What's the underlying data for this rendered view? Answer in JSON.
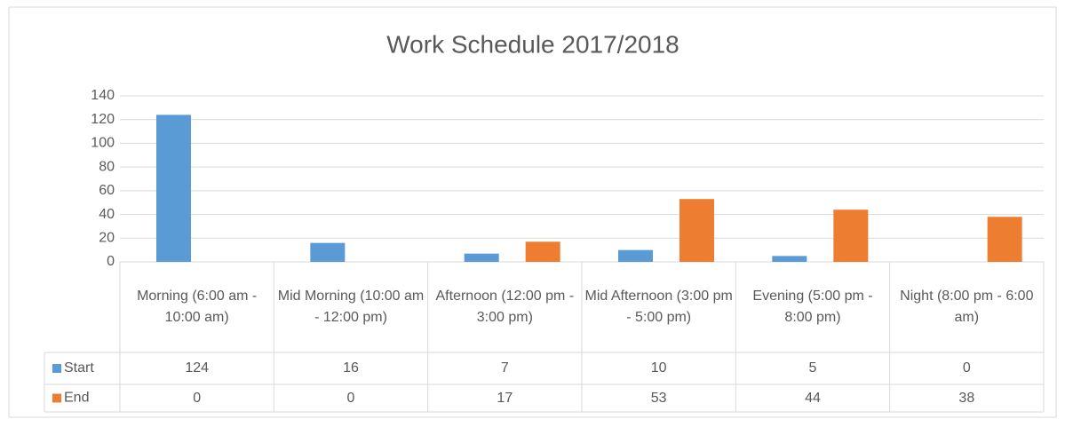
{
  "chart_data": {
    "type": "bar",
    "title": "Work Schedule 2017/2018",
    "categories": [
      "Morning (6:00 am - 10:00 am)",
      "Mid Morning (10:00 am - 12:00 pm)",
      "Afternoon (12:00 pm - 3:00 pm)",
      "Mid Afternoon (3:00 pm - 5:00 pm)",
      "Evening (5:00 pm - 8:00 pm)",
      "Night (8:00 pm - 6:00 am)"
    ],
    "series": [
      {
        "name": "Start",
        "color": "#5b9bd5",
        "values": [
          124,
          16,
          7,
          10,
          5,
          0
        ]
      },
      {
        "name": "End",
        "color": "#ed7d31",
        "values": [
          0,
          0,
          17,
          53,
          44,
          38
        ]
      }
    ],
    "ylim": [
      0,
      140
    ],
    "yticks": [
      0,
      20,
      40,
      60,
      80,
      100,
      120,
      140
    ],
    "grid": true
  }
}
